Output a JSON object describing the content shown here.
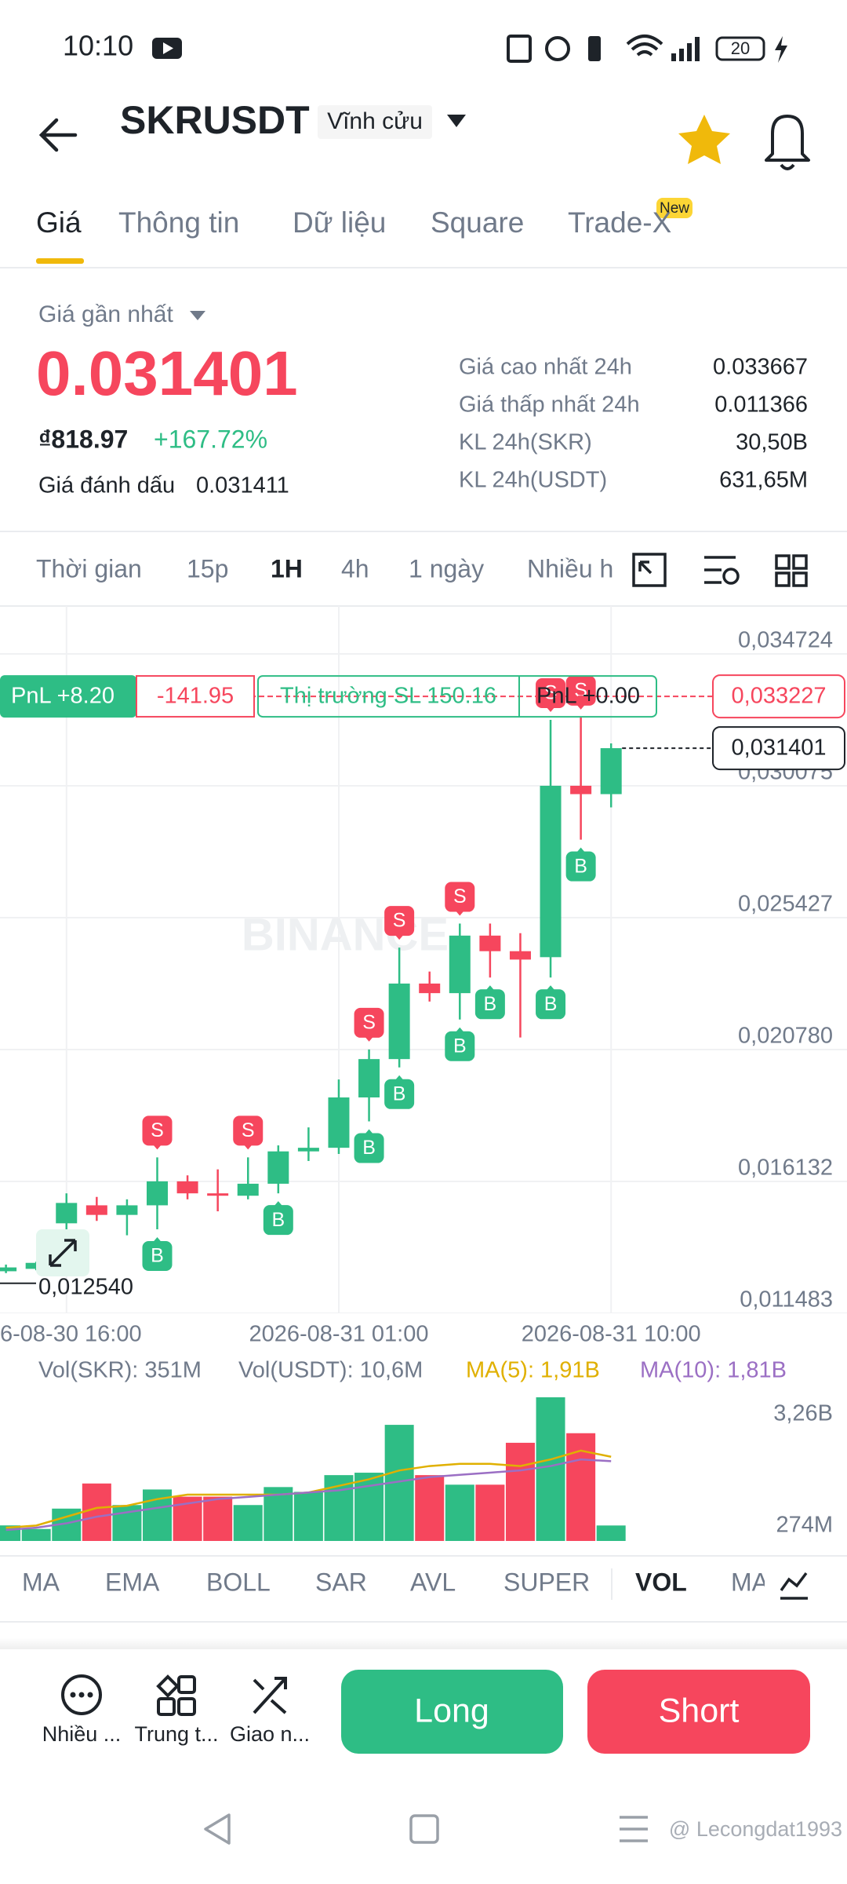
{
  "status_bar": {
    "time": "10:10",
    "battery": "20"
  },
  "header": {
    "symbol": "SKRUSDT",
    "contract": "Vĩnh cửu"
  },
  "tabs": {
    "items": [
      "Giá",
      "Thông tin",
      "Dữ liệu",
      "Square",
      "Trade-X"
    ],
    "badge": "New"
  },
  "price": {
    "label": "Giá gần nhất",
    "last": "0.031401",
    "fiat": "₫818.97",
    "change": "+167.72%",
    "mark_label": "Giá đánh dấu",
    "mark": "0.031411"
  },
  "stats": [
    [
      "Giá cao nhất 24h",
      "0.033667"
    ],
    [
      "Giá thấp nhất 24h",
      "0.011366"
    ],
    [
      "KL 24h(SKR)",
      "30,50B"
    ],
    [
      "KL 24h(USDT)",
      "631,65M"
    ]
  ],
  "intervals": [
    "Thời gian",
    "15p",
    "1H",
    "4h",
    "1 ngày",
    "Nhiều h"
  ],
  "chart": {
    "type": "candlestick",
    "ylim": [
      0.011483,
      0.036411
    ],
    "yticks": [
      {
        "value": 0.034724,
        "label": "0,034724"
      },
      {
        "value": 0.030075,
        "label": "0,030075"
      },
      {
        "value": 0.025427,
        "label": "0,025427"
      },
      {
        "value": 0.02078,
        "label": "0,020780"
      },
      {
        "value": 0.016132,
        "label": "0,016132"
      },
      {
        "value": 0.011483,
        "label": "0,011483"
      }
    ],
    "x_labels": [
      "6-08-30 16:00",
      "2026-08-31 01:00",
      "2026-08-31 10:00"
    ],
    "up_color": "#2ebd85",
    "down_color": "#f6465d",
    "candles": [
      {
        "open": 0.012965,
        "high": 0.0132,
        "low": 0.0129,
        "close": 0.0131
      },
      {
        "open": 0.01305,
        "high": 0.0133,
        "low": 0.013,
        "close": 0.013261
      },
      {
        "open": 0.014655,
        "high": 0.015711,
        "low": 0.014444,
        "close": 0.015373
      },
      {
        "open": 0.015289,
        "high": 0.015585,
        "low": 0.01474,
        "close": 0.014951
      },
      {
        "open": 0.014951,
        "high": 0.0155,
        "low": 0.014233,
        "close": 0.015289
      },
      {
        "open": 0.015289,
        "high": 0.016979,
        "low": 0.014444,
        "close": 0.016134
      },
      {
        "open": 0.016134,
        "high": 0.016345,
        "low": 0.0155,
        "close": 0.015711
      },
      {
        "open": 0.015711,
        "high": 0.016556,
        "low": 0.015078,
        "close": 0.015627
      },
      {
        "open": 0.015627,
        "high": 0.016979,
        "low": 0.0155,
        "close": 0.01605
      },
      {
        "open": 0.01605,
        "high": 0.017401,
        "low": 0.015711,
        "close": 0.01719
      },
      {
        "open": 0.01719,
        "high": 0.018035,
        "low": 0.016852,
        "close": 0.017317
      },
      {
        "open": 0.017317,
        "high": 0.019725,
        "low": 0.0171,
        "close": 0.019091
      },
      {
        "open": 0.019091,
        "high": 0.020781,
        "low": 0.018246,
        "close": 0.020443
      },
      {
        "open": 0.020443,
        "high": 0.024373,
        "low": 0.020148,
        "close": 0.023105
      },
      {
        "open": 0.023105,
        "high": 0.023528,
        "low": 0.022471,
        "close": 0.022767
      },
      {
        "open": 0.022767,
        "high": 0.025218,
        "low": 0.021838,
        "close": 0.024795
      },
      {
        "open": 0.024795,
        "high": 0.025218,
        "low": 0.023316,
        "close": 0.024246
      },
      {
        "open": 0.024246,
        "high": 0.02488,
        "low": 0.021204,
        "close": 0.02395
      },
      {
        "open": 0.024035,
        "high": 0.0324,
        "low": 0.023316,
        "close": 0.030076
      },
      {
        "open": 0.030076,
        "high": 0.032485,
        "low": 0.028175,
        "close": 0.029781
      },
      {
        "open": 0.029781,
        "high": 0.03157,
        "low": 0.029316,
        "close": 0.031401
      }
    ],
    "trade_markers": {
      "buy": "B",
      "sell": "S"
    },
    "watermark": "BINANCE",
    "position": {
      "pnl": "PnL +8.20",
      "amount": "-141.95",
      "stop": "Thị trường SL 150.16",
      "pnl2": "PnL +0.00",
      "line": {
        "value": 0.033227,
        "label": "0,033227"
      }
    },
    "last_price": {
      "value": 0.031401,
      "label": "0,031401"
    },
    "low_marker": {
      "value": 0.01254,
      "label": "0,012540"
    }
  },
  "volume": {
    "legend": [
      {
        "text": "Vol(SKR): 351M",
        "color": "#707a8a"
      },
      {
        "text": "Vol(USDT): 10,6M",
        "color": "#707a8a"
      },
      {
        "text": "MA(5): 1,91B",
        "color": "#e0b000"
      },
      {
        "text": "MA(10): 1,81B",
        "color": "#9b6fc4"
      }
    ],
    "ylim": [
      0,
      3.26
    ],
    "yticks": [
      {
        "value": 3.26,
        "label": "3,26B"
      },
      {
        "value": 0.274,
        "label": "274M"
      }
    ],
    "values": [
      0.353,
      0.272,
      0.734,
      1.304,
      0.815,
      1.168,
      1.005,
      1.005,
      0.815,
      1.223,
      1.114,
      1.494,
      1.549,
      2.635,
      1.494,
      1.277,
      1.277,
      2.228,
      3.26,
      2.445,
      0.351
    ],
    "ma5": [
      0.3,
      0.35,
      0.55,
      0.75,
      0.8,
      0.95,
      1.05,
      1.05,
      1.05,
      1.05,
      1.1,
      1.25,
      1.4,
      1.6,
      1.7,
      1.75,
      1.75,
      1.7,
      1.85,
      2.05,
      1.91
    ],
    "ma10": [
      0.25,
      0.3,
      0.4,
      0.55,
      0.65,
      0.75,
      0.85,
      0.95,
      1.0,
      1.05,
      1.1,
      1.15,
      1.25,
      1.35,
      1.45,
      1.5,
      1.55,
      1.6,
      1.7,
      1.85,
      1.81
    ]
  },
  "indicators": [
    "MA",
    "EMA",
    "BOLL",
    "SAR",
    "AVL",
    "SUPER",
    "VOL",
    "MA"
  ],
  "actions": [
    "Nhiều ...",
    "Trung t...",
    "Giao n..."
  ],
  "buttons": {
    "long": "Long",
    "short": "Short"
  },
  "watermark": "@ Lecongdat1993"
}
